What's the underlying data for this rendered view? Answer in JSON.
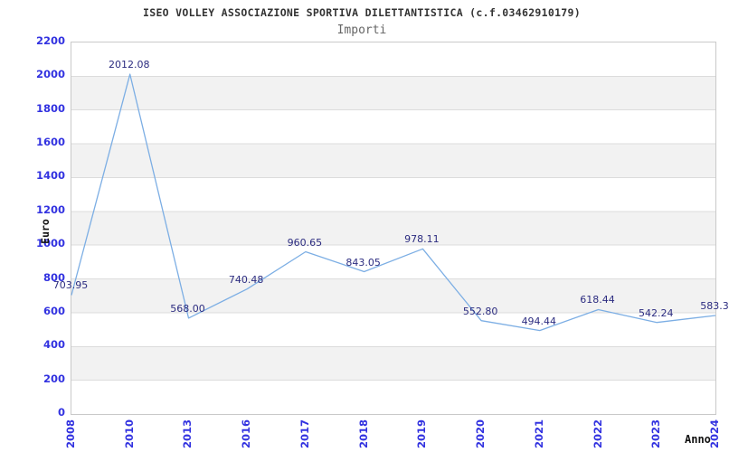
{
  "header": {
    "title": "ISEO VOLLEY ASSOCIAZIONE SPORTIVA DILETTANTISTICA (c.f.03462910179)",
    "subtitle": "Importi"
  },
  "chart_data": {
    "type": "line",
    "title": "ISEO VOLLEY ASSOCIAZIONE SPORTIVA DILETTANTISTICA (c.f.03462910179)",
    "subtitle": "Importi",
    "xlabel": "Anno",
    "ylabel": "Euro",
    "categories": [
      "2008",
      "2010",
      "2013",
      "2016",
      "2017",
      "2018",
      "2019",
      "2020",
      "2021",
      "2022",
      "2023",
      "2024"
    ],
    "series": [
      {
        "name": "Importi",
        "values": [
          703.95,
          2012.08,
          568.0,
          740.48,
          960.65,
          843.05,
          978.11,
          552.8,
          494.44,
          618.44,
          542.24,
          583.3
        ]
      }
    ],
    "point_labels": [
      "703.95",
      "2012.08",
      "568.00",
      "740.48",
      "960.65",
      "843.05",
      "978.11",
      "552.80",
      "494.44",
      "618.44",
      "542.24",
      "583.3"
    ],
    "ylim": [
      0,
      2200
    ],
    "ytick_step": 200,
    "yticks": [
      "0",
      "200",
      "400",
      "600",
      "800",
      "1000",
      "1200",
      "1400",
      "1600",
      "1800",
      "2000",
      "2200"
    ],
    "grid": true,
    "banded": true,
    "legend_position": "none",
    "colors": {
      "line": "#7caee4",
      "tick_label": "#3232e0",
      "point_label": "#2c2c80",
      "band": "#f2f2f2",
      "grid": "#dcdcdc",
      "border": "#c9c9c9",
      "title": "#333333",
      "subtitle": "#666666",
      "axis_label": "#111111"
    }
  }
}
